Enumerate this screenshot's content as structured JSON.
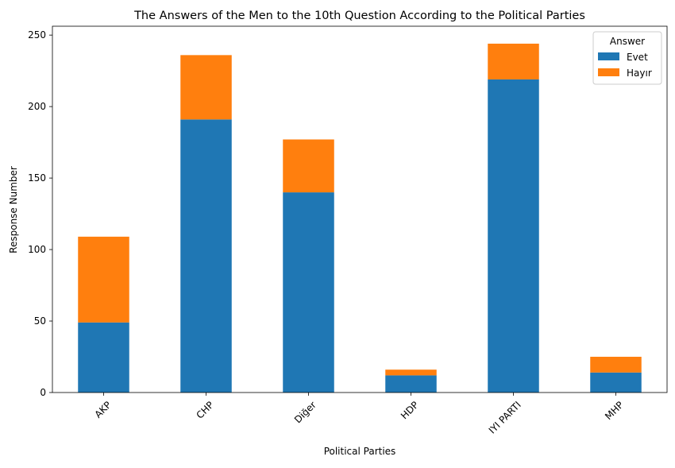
{
  "chart_data": {
    "type": "bar",
    "stacked": true,
    "title": "The Answers of the Men to the 10th Question According to the Political Parties",
    "xlabel": "Political Parties",
    "ylabel": "Response Number",
    "categories": [
      "AKP",
      "CHP",
      "Diğer",
      "HDP",
      "IYI PARTI",
      "MHP"
    ],
    "series": [
      {
        "name": "Evet",
        "color": "#1f77b4",
        "values": [
          49,
          191,
          140,
          12,
          219,
          14
        ]
      },
      {
        "name": "Hayır",
        "color": "#ff7f0e",
        "values": [
          60,
          45,
          37,
          4,
          25,
          11
        ]
      }
    ],
    "ylim": [
      0,
      256.2
    ],
    "yticks": [
      0,
      50,
      100,
      150,
      200,
      250
    ],
    "xtick_rotation": 45,
    "legend": {
      "title": "Answer",
      "placement": "top-right"
    },
    "grid": false
  }
}
